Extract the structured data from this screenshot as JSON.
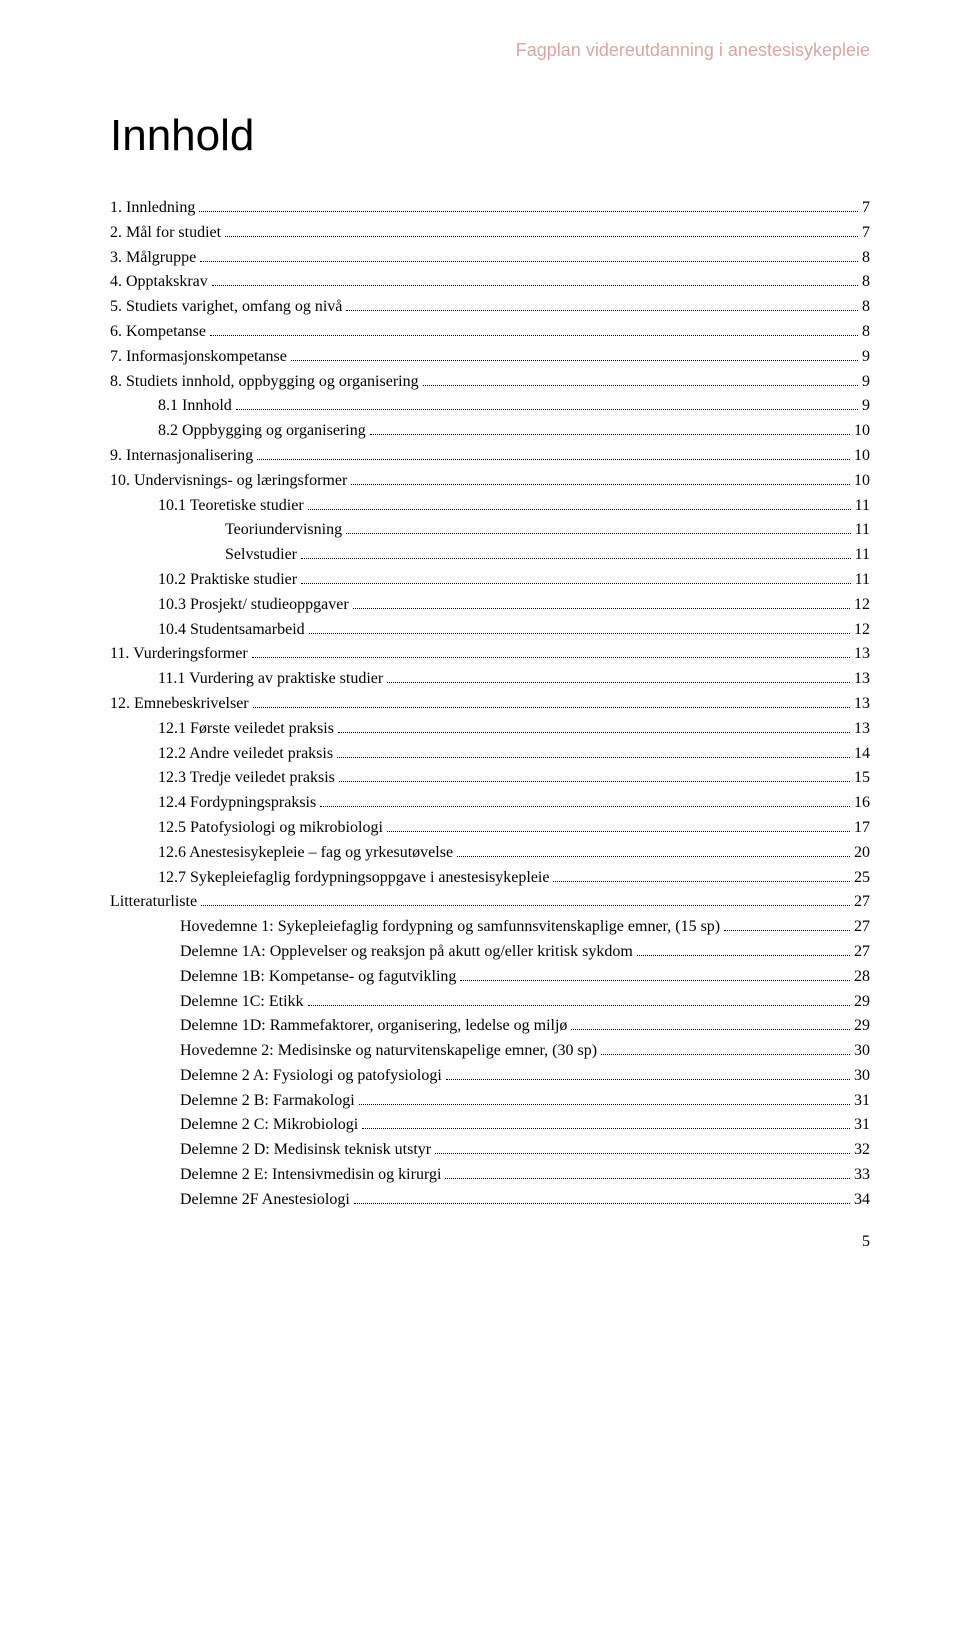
{
  "header": "Fagplan videreutdanning i anestesisykepleie",
  "title": "Innhold",
  "pageNumber": "5",
  "toc": [
    {
      "indent": 0,
      "label": "1.   Innledning",
      "page": "7"
    },
    {
      "indent": 0,
      "label": "2.   Mål for studiet",
      "page": "7"
    },
    {
      "indent": 0,
      "label": "3.   Målgruppe",
      "page": "8"
    },
    {
      "indent": 0,
      "label": "4.   Opptakskrav",
      "page": "8"
    },
    {
      "indent": 0,
      "label": "5.   Studiets varighet, omfang og nivå",
      "page": "8"
    },
    {
      "indent": 0,
      "label": "6.   Kompetanse",
      "page": "8"
    },
    {
      "indent": 0,
      "label": "7.   Informasjonskompetanse",
      "page": "9"
    },
    {
      "indent": 0,
      "label": "8.   Studiets innhold, oppbygging og organisering",
      "page": "9"
    },
    {
      "indent": 1,
      "label": "8.1   Innhold",
      "page": "9"
    },
    {
      "indent": 1,
      "label": "8.2   Oppbygging og organisering",
      "page": "10"
    },
    {
      "indent": 0,
      "label": "9.   Internasjonalisering",
      "page": "10"
    },
    {
      "indent": 0,
      "label": "10.  Undervisnings- og læringsformer",
      "page": "10"
    },
    {
      "indent": 1,
      "label": "10.1  Teoretiske studier",
      "page": "11"
    },
    {
      "indent": 2,
      "label": "Teoriundervisning",
      "page": "11"
    },
    {
      "indent": 2,
      "label": "Selvstudier",
      "page": "11"
    },
    {
      "indent": 1,
      "label": "10.2  Praktiske studier",
      "page": "11"
    },
    {
      "indent": 1,
      "label": "10.3  Prosjekt/ studieoppgaver",
      "page": "12"
    },
    {
      "indent": 1,
      "label": "10.4  Studentsamarbeid",
      "page": "12"
    },
    {
      "indent": 0,
      "label": "11.  Vurderingsformer",
      "page": "13"
    },
    {
      "indent": 1,
      "label": "11.1  Vurdering av praktiske studier",
      "page": "13"
    },
    {
      "indent": 0,
      "label": "12.  Emnebeskrivelser",
      "page": "13"
    },
    {
      "indent": 1,
      "label": "12.1  Første veiledet praksis",
      "page": "13"
    },
    {
      "indent": 1,
      "label": "12.2  Andre veiledet praksis",
      "page": "14"
    },
    {
      "indent": 1,
      "label": "12.3  Tredje veiledet praksis",
      "page": "15"
    },
    {
      "indent": 1,
      "label": "12.4  Fordypningspraksis",
      "page": "16"
    },
    {
      "indent": 1,
      "label": "12.5  Patofysiologi og mikrobiologi",
      "page": "17"
    },
    {
      "indent": 1,
      "label": "12.6  Anestesisykepleie – fag og yrkesutøvelse",
      "page": "20"
    },
    {
      "indent": 1,
      "label": "12.7  Sykepleiefaglig fordypningsoppgave i anestesisykepleie",
      "page": "25"
    },
    {
      "indent": 0,
      "label": "Litteraturliste",
      "page": "27"
    },
    {
      "indent": 3,
      "label": "Hovedemne 1:    Sykepleiefaglig fordypning og samfunnsvitenskaplige emner, (15 sp)",
      "page": "27"
    },
    {
      "indent": 3,
      "label": "Delemne 1A:    Opplevelser og reaksjon på akutt og/eller kritisk sykdom",
      "page": "27"
    },
    {
      "indent": 3,
      "label": "Delemne 1B:    Kompetanse- og fagutvikling",
      "page": "28"
    },
    {
      "indent": 3,
      "label": "Delemne 1C:    Etikk",
      "page": "29"
    },
    {
      "indent": 3,
      "label": "Delemne 1D:    Rammefaktorer, organisering, ledelse og miljø",
      "page": "29"
    },
    {
      "indent": 3,
      "label": "Hovedemne 2:    Medisinske og naturvitenskapelige emner, (30 sp)",
      "page": "30"
    },
    {
      "indent": 3,
      "label": "Delemne 2 A:    Fysiologi og patofysiologi",
      "page": "30"
    },
    {
      "indent": 3,
      "label": "Delemne 2 B:    Farmakologi",
      "page": "31"
    },
    {
      "indent": 3,
      "label": "Delemne 2 C:    Mikrobiologi",
      "page": "31"
    },
    {
      "indent": 3,
      "label": "Delemne 2 D:    Medisinsk teknisk utstyr",
      "page": "32"
    },
    {
      "indent": 3,
      "label": "Delemne 2 E: Intensivmedisin og kirurgi",
      "page": "33"
    },
    {
      "indent": 3,
      "label": "Delemne 2F Anestesiologi",
      "page": "34"
    }
  ]
}
